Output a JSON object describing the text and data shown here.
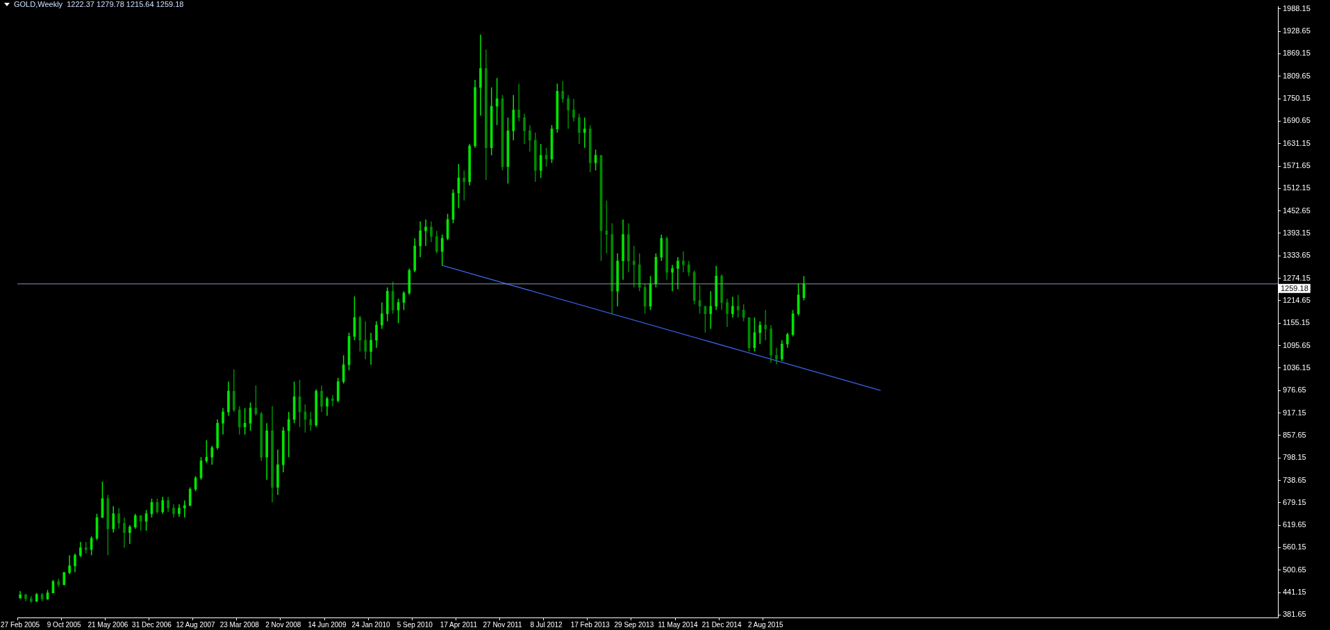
{
  "chart_data": {
    "type": "candlestick",
    "title": "GOLD,Weekly  1222.37 1279.78 1215.64 1259.18",
    "colors": [
      "#00e600",
      "#008a00",
      "#008a00",
      "#00e600",
      "#008a00",
      "#00e600",
      "#00e600",
      "#008a00",
      "#00e600",
      "#00e600",
      "#00e600",
      "#00e600",
      "#008a00",
      "#00e600",
      "#00e600",
      "#00e600",
      "#008a00",
      "#00e600",
      "#008a00",
      "#008a00",
      "#00e600",
      "#00e600",
      "#008a00",
      "#00e600",
      "#00e600",
      "#008a00",
      "#00e600",
      "#008a00",
      "#008a00",
      "#00e600",
      "#00e600",
      "#00e600",
      "#00e600",
      "#00e600",
      "#00e600",
      "#00e600",
      "#00e600",
      "#00e600",
      "#00e600",
      "#008a00",
      "#008a00",
      "#00e600",
      "#00e600",
      "#008a00",
      "#008a00",
      "#00e600",
      "#008a00",
      "#00e600",
      "#00e600",
      "#00e600",
      "#00e600",
      "#008a00",
      "#008a00",
      "#008a00",
      "#00e600",
      "#008a00",
      "#00e600",
      "#008a00",
      "#00e600",
      "#00e600",
      "#00e600",
      "#00e600",
      "#008a00",
      "#008a00",
      "#00e600",
      "#00e600",
      "#00e600",
      "#00e600",
      "#008a00",
      "#00e600",
      "#00e600",
      "#00e600",
      "#00e600",
      "#00e600",
      "#00e600",
      "#008a00",
      "#008a00",
      "#00e600",
      "#00e600",
      "#00e600",
      "#00e600",
      "#008a00",
      "#00e600",
      "#00e600",
      "#00e600",
      "#008a00",
      "#00e600",
      "#00e600",
      "#008a00",
      "#00e600",
      "#00e600",
      "#008a00",
      "#008a00",
      "#008a00",
      "#008a00",
      "#00e600",
      "#008a00",
      "#00e600",
      "#00e600",
      "#008a00",
      "#008a00",
      "#008a00",
      "#008a00",
      "#00e600",
      "#008a00",
      "#00e600",
      "#008a00",
      "#008a00",
      "#008a00",
      "#00e600",
      "#00e600",
      "#008a00",
      "#008a00",
      "#008a00",
      "#008a00",
      "#00e600",
      "#00e600",
      "#00e600",
      "#008a00",
      "#00e600",
      "#00e600",
      "#008a00",
      "#008a00",
      "#008a00",
      "#008a00",
      "#008a00",
      "#00e600",
      "#00e600",
      "#008a00",
      "#008a00",
      "#00e600",
      "#008a00",
      "#008a00",
      "#008a00",
      "#00e600",
      "#00e600",
      "#008a00",
      "#008a00",
      "#008a00",
      "#00e600",
      "#00e600",
      "#00e600",
      "#00e600",
      "#00e600",
      null,
      null,
      null,
      null,
      null,
      null,
      null,
      null,
      null,
      null,
      null,
      null,
      null,
      null,
      null,
      null,
      null,
      null,
      null,
      null,
      null,
      null,
      null,
      null,
      null,
      null,
      null,
      null,
      null,
      null,
      null,
      null,
      null,
      null,
      null,
      null,
      null,
      null,
      null,
      null,
      null,
      null,
      null,
      null,
      null,
      null,
      null,
      null,
      null,
      null,
      null,
      null,
      null,
      null,
      null,
      null,
      null,
      null,
      null,
      null,
      null,
      null,
      null,
      null,
      null,
      null,
      null,
      null,
      null,
      null,
      null,
      null,
      null,
      null,
      null,
      null,
      null,
      null,
      null,
      null,
      null,
      null,
      null,
      null,
      null,
      null
    ],
    "categories": [
      "27 Feb 2005",
      null,
      null,
      null,
      null,
      null,
      null,
      null,
      "9 Oct 2005",
      null,
      null,
      null,
      null,
      null,
      null,
      null,
      "21 May 2006",
      null,
      null,
      null,
      null,
      null,
      null,
      null,
      "31 Dec 2006",
      null,
      null,
      null,
      null,
      null,
      null,
      null,
      "12 Aug 2007",
      null,
      null,
      null,
      null,
      null,
      null,
      null,
      "23 Mar 2008",
      null,
      null,
      null,
      null,
      null,
      null,
      null,
      "2 Nov 2008",
      null,
      null,
      null,
      null,
      null,
      null,
      null,
      "14 Jun 2009",
      null,
      null,
      null,
      null,
      null,
      null,
      null,
      "24 Jan 2010",
      null,
      null,
      null,
      null,
      null,
      null,
      null,
      "5 Sep 2010",
      null,
      null,
      null,
      null,
      null,
      null,
      null,
      "17 Apr 2011",
      null,
      null,
      null,
      null,
      null,
      null,
      null,
      "27 Nov 2011",
      null,
      null,
      null,
      null,
      null,
      null,
      null,
      "8 Jul 2012",
      null,
      null,
      null,
      null,
      null,
      null,
      null,
      "17 Feb 2013",
      null,
      null,
      null,
      null,
      null,
      null,
      null,
      "29 Sep 2013",
      null,
      null,
      null,
      null,
      null,
      null,
      null,
      "11 May 2014",
      null,
      null,
      null,
      null,
      null,
      null,
      null,
      "21 Dec 2014",
      null,
      null,
      null,
      null,
      null,
      null,
      null,
      "2 Aug 2015",
      null,
      null,
      null,
      null,
      null,
      null,
      null,
      null,
      null,
      null,
      null,
      null,
      null,
      null,
      null,
      null,
      null,
      null,
      null,
      null,
      null,
      null,
      null,
      null,
      null,
      null,
      null,
      null,
      null,
      null,
      null,
      null,
      null,
      null,
      null,
      null,
      null,
      null,
      null,
      null,
      null,
      null,
      null,
      null,
      null,
      null,
      null,
      null,
      null,
      null,
      null,
      null,
      null,
      null,
      null,
      null,
      null,
      null,
      null,
      null,
      null,
      null,
      null,
      null,
      null,
      null,
      null,
      null,
      null,
      null,
      null,
      null,
      null,
      null,
      null,
      null,
      null,
      null,
      null,
      null,
      null,
      null,
      null,
      null,
      null,
      null,
      null,
      null,
      null,
      null,
      null,
      null,
      null
    ],
    "ohlc": [
      [
        427,
        445,
        424,
        435
      ],
      [
        435,
        438,
        418,
        425
      ],
      [
        425,
        432,
        414,
        418
      ],
      [
        418,
        440,
        416,
        436
      ],
      [
        436,
        440,
        418,
        424
      ],
      [
        424,
        448,
        422,
        440
      ],
      [
        440,
        475,
        440,
        470
      ],
      [
        470,
        478,
        456,
        462
      ],
      [
        462,
        496,
        460,
        494
      ],
      [
        494,
        540,
        490,
        512
      ],
      [
        512,
        545,
        495,
        540
      ],
      [
        540,
        575,
        535,
        560
      ],
      [
        560,
        575,
        545,
        555
      ],
      [
        555,
        590,
        540,
        585
      ],
      [
        585,
        650,
        580,
        640
      ],
      [
        640,
        735,
        640,
        690
      ],
      [
        690,
        700,
        540,
        610
      ],
      [
        610,
        670,
        600,
        650
      ],
      [
        650,
        665,
        610,
        625
      ],
      [
        625,
        640,
        560,
        600
      ],
      [
        600,
        620,
        570,
        615
      ],
      [
        615,
        650,
        610,
        645
      ],
      [
        645,
        645,
        605,
        630
      ],
      [
        630,
        660,
        605,
        650
      ],
      [
        650,
        690,
        640,
        680
      ],
      [
        680,
        690,
        650,
        655
      ],
      [
        655,
        695,
        650,
        685
      ],
      [
        685,
        695,
        655,
        665
      ],
      [
        665,
        675,
        640,
        650
      ],
      [
        650,
        675,
        642,
        665
      ],
      [
        665,
        685,
        640,
        672
      ],
      [
        672,
        720,
        670,
        715
      ],
      [
        715,
        750,
        710,
        745
      ],
      [
        745,
        800,
        740,
        790
      ],
      [
        790,
        845,
        785,
        800
      ],
      [
        800,
        830,
        780,
        825
      ],
      [
        825,
        900,
        820,
        890
      ],
      [
        890,
        930,
        860,
        920
      ],
      [
        920,
        1000,
        910,
        975
      ],
      [
        975,
        1033,
        920,
        925
      ],
      [
        925,
        935,
        860,
        880
      ],
      [
        880,
        930,
        860,
        890
      ],
      [
        890,
        945,
        870,
        930
      ],
      [
        930,
        990,
        910,
        915
      ],
      [
        915,
        920,
        790,
        800
      ],
      [
        800,
        890,
        740,
        870
      ],
      [
        870,
        935,
        680,
        720
      ],
      [
        720,
        820,
        700,
        780
      ],
      [
        780,
        880,
        760,
        870
      ],
      [
        870,
        920,
        800,
        900
      ],
      [
        900,
        1000,
        890,
        960
      ],
      [
        960,
        1005,
        880,
        920
      ],
      [
        920,
        940,
        865,
        900
      ],
      [
        900,
        920,
        870,
        885
      ],
      [
        885,
        980,
        880,
        975
      ],
      [
        975,
        990,
        920,
        935
      ],
      [
        935,
        960,
        910,
        955
      ],
      [
        955,
        965,
        935,
        950
      ],
      [
        950,
        1010,
        945,
        1000
      ],
      [
        1000,
        1070,
        995,
        1045
      ],
      [
        1045,
        1130,
        1030,
        1120
      ],
      [
        1120,
        1226,
        1110,
        1170
      ],
      [
        1170,
        1175,
        1080,
        1110
      ],
      [
        1110,
        1160,
        1060,
        1080
      ],
      [
        1080,
        1130,
        1045,
        1110
      ],
      [
        1110,
        1160,
        1090,
        1150
      ],
      [
        1150,
        1210,
        1140,
        1180
      ],
      [
        1180,
        1250,
        1160,
        1240
      ],
      [
        1240,
        1265,
        1180,
        1190
      ],
      [
        1190,
        1220,
        1155,
        1210
      ],
      [
        1210,
        1240,
        1190,
        1235
      ],
      [
        1235,
        1300,
        1230,
        1295
      ],
      [
        1295,
        1380,
        1290,
        1360
      ],
      [
        1360,
        1425,
        1330,
        1400
      ],
      [
        1400,
        1430,
        1360,
        1410
      ],
      [
        1410,
        1425,
        1370,
        1385
      ],
      [
        1385,
        1400,
        1340,
        1345
      ],
      [
        1345,
        1390,
        1308,
        1380
      ],
      [
        1380,
        1445,
        1375,
        1430
      ],
      [
        1430,
        1510,
        1420,
        1500
      ],
      [
        1500,
        1577,
        1460,
        1540
      ],
      [
        1540,
        1560,
        1480,
        1530
      ],
      [
        1530,
        1630,
        1520,
        1625
      ],
      [
        1625,
        1800,
        1620,
        1780
      ],
      [
        1780,
        1920,
        1705,
        1830
      ],
      [
        1830,
        1880,
        1535,
        1620
      ],
      [
        1620,
        1780,
        1600,
        1730
      ],
      [
        1730,
        1805,
        1680,
        1750
      ],
      [
        1750,
        1760,
        1560,
        1570
      ],
      [
        1570,
        1700,
        1525,
        1665
      ],
      [
        1665,
        1760,
        1640,
        1720
      ],
      [
        1720,
        1790,
        1690,
        1700
      ],
      [
        1700,
        1710,
        1630,
        1665
      ],
      [
        1665,
        1680,
        1610,
        1640
      ],
      [
        1640,
        1660,
        1530,
        1560
      ],
      [
        1560,
        1630,
        1540,
        1600
      ],
      [
        1600,
        1620,
        1570,
        1590
      ],
      [
        1590,
        1680,
        1580,
        1670
      ],
      [
        1670,
        1790,
        1660,
        1770
      ],
      [
        1770,
        1797,
        1740,
        1750
      ],
      [
        1750,
        1760,
        1670,
        1720
      ],
      [
        1720,
        1750,
        1690,
        1700
      ],
      [
        1700,
        1710,
        1630,
        1660
      ],
      [
        1660,
        1700,
        1620,
        1670
      ],
      [
        1670,
        1680,
        1555,
        1580
      ],
      [
        1580,
        1615,
        1560,
        1600
      ],
      [
        1600,
        1600,
        1320,
        1400
      ],
      [
        1400,
        1480,
        1340,
        1390
      ],
      [
        1390,
        1420,
        1180,
        1240
      ],
      [
        1240,
        1340,
        1200,
        1320
      ],
      [
        1320,
        1430,
        1270,
        1390
      ],
      [
        1390,
        1420,
        1290,
        1320
      ],
      [
        1320,
        1360,
        1250,
        1310
      ],
      [
        1310,
        1340,
        1240,
        1250
      ],
      [
        1250,
        1260,
        1180,
        1200
      ],
      [
        1200,
        1280,
        1190,
        1260
      ],
      [
        1260,
        1340,
        1250,
        1330
      ],
      [
        1330,
        1390,
        1320,
        1380
      ],
      [
        1380,
        1385,
        1270,
        1290
      ],
      [
        1290,
        1310,
        1240,
        1300
      ],
      [
        1300,
        1330,
        1245,
        1320
      ],
      [
        1320,
        1345,
        1290,
        1310
      ],
      [
        1310,
        1320,
        1280,
        1290
      ],
      [
        1290,
        1295,
        1205,
        1215
      ],
      [
        1215,
        1255,
        1180,
        1200
      ],
      [
        1200,
        1200,
        1130,
        1180
      ],
      [
        1180,
        1240,
        1140,
        1200
      ],
      [
        1200,
        1307,
        1190,
        1280
      ],
      [
        1280,
        1285,
        1190,
        1210
      ],
      [
        1210,
        1220,
        1145,
        1180
      ],
      [
        1180,
        1225,
        1170,
        1200
      ],
      [
        1200,
        1230,
        1170,
        1190
      ],
      [
        1190,
        1205,
        1160,
        1170
      ],
      [
        1170,
        1170,
        1080,
        1090
      ],
      [
        1090,
        1170,
        1080,
        1130
      ],
      [
        1130,
        1160,
        1100,
        1150
      ],
      [
        1150,
        1190,
        1110,
        1140
      ],
      [
        1140,
        1150,
        1050,
        1070
      ],
      [
        1070,
        1090,
        1046,
        1060
      ],
      [
        1060,
        1110,
        1055,
        1100
      ],
      [
        1100,
        1130,
        1090,
        1125
      ],
      [
        1125,
        1190,
        1120,
        1180
      ],
      [
        1180,
        1260,
        1175,
        1230
      ],
      [
        1222.37,
        1279.78,
        1215.64,
        1259.18
      ],
      null,
      null,
      null,
      null,
      null,
      null,
      null,
      null,
      null,
      null,
      null,
      null,
      null,
      null,
      null,
      null,
      null,
      null,
      null,
      null,
      null,
      null,
      null,
      null,
      null,
      null,
      null,
      null,
      null,
      null,
      null,
      null,
      null,
      null,
      null,
      null,
      null,
      null,
      null,
      null,
      null,
      null,
      null,
      null,
      null,
      null,
      null,
      null,
      null,
      null,
      null,
      null,
      null,
      null,
      null,
      null,
      null,
      null,
      null,
      null,
      null,
      null,
      null,
      null,
      null,
      null,
      null,
      null,
      null,
      null,
      null,
      null,
      null,
      null,
      null,
      null,
      null,
      null,
      null,
      null,
      null,
      null,
      null,
      null,
      null,
      null
    ],
    "series": [
      {
        "type": "line",
        "color": "#3a62e8",
        "values": [
          null,
          null,
          null,
          null,
          null,
          null,
          null,
          null,
          null,
          null,
          null,
          null,
          null,
          null,
          null,
          null,
          null,
          null,
          null,
          null,
          null,
          null,
          null,
          null,
          null,
          null,
          null,
          null,
          null,
          null,
          null,
          null,
          null,
          null,
          null,
          null,
          null,
          null,
          null,
          null,
          null,
          null,
          null,
          null,
          null,
          null,
          null,
          null,
          null,
          null,
          null,
          null,
          null,
          null,
          null,
          null,
          null,
          null,
          null,
          null,
          null,
          null,
          null,
          null,
          null,
          null,
          null,
          null,
          null,
          null,
          null,
          null,
          null,
          null,
          null,
          null,
          null,
          1308,
          null,
          null,
          null,
          null,
          null,
          null,
          null,
          null,
          null,
          null,
          null,
          null,
          null,
          null,
          null,
          null,
          null,
          null,
          null,
          null,
          null,
          null,
          null,
          null,
          null,
          null,
          null,
          null,
          null,
          null,
          null,
          null,
          null,
          null,
          null,
          null,
          null,
          null,
          null,
          null,
          null,
          null,
          null,
          null,
          null,
          null,
          null,
          null,
          null,
          null,
          null,
          null,
          null,
          null,
          null,
          null,
          null,
          null,
          null,
          null,
          null,
          null,
          null,
          null,
          null,
          null,
          null,
          null,
          null,
          null,
          null,
          null,
          null,
          null,
          null,
          null,
          null,
          null,
          null,
          977,
          null,
          null,
          null,
          null,
          null,
          null,
          null,
          null,
          null,
          null,
          null,
          null,
          null,
          null,
          null,
          null,
          null,
          null,
          null,
          null,
          null,
          null,
          null,
          null,
          null,
          null,
          null,
          null,
          null,
          null,
          null,
          null,
          null,
          null,
          null,
          null,
          null,
          null,
          null,
          null,
          null,
          null,
          null,
          null,
          null,
          null,
          null,
          null,
          null,
          null,
          null,
          null,
          null,
          null,
          null,
          null,
          null,
          null,
          null,
          null,
          null,
          null,
          null,
          null,
          null,
          null,
          null,
          null,
          null,
          null,
          null,
          null
        ]
      }
    ],
    "ref_lines": [
      {
        "axis": "y",
        "value": 1259.18,
        "label": "1259.18",
        "color": "#8a96ab"
      }
    ],
    "ylim": [
      375,
      1994
    ],
    "yticks": [
      381.65,
      441.15,
      500.65,
      560.15,
      619.65,
      679.15,
      738.65,
      798.15,
      857.65,
      917.15,
      976.65,
      1036.15,
      1095.65,
      1155.15,
      1214.65,
      1274.15,
      1333.65,
      1393.15,
      1452.65,
      1512.15,
      1571.65,
      1631.15,
      1690.65,
      1750.15,
      1809.65,
      1869.15,
      1928.65,
      1988.15
    ],
    "grid": false,
    "legend": false
  }
}
